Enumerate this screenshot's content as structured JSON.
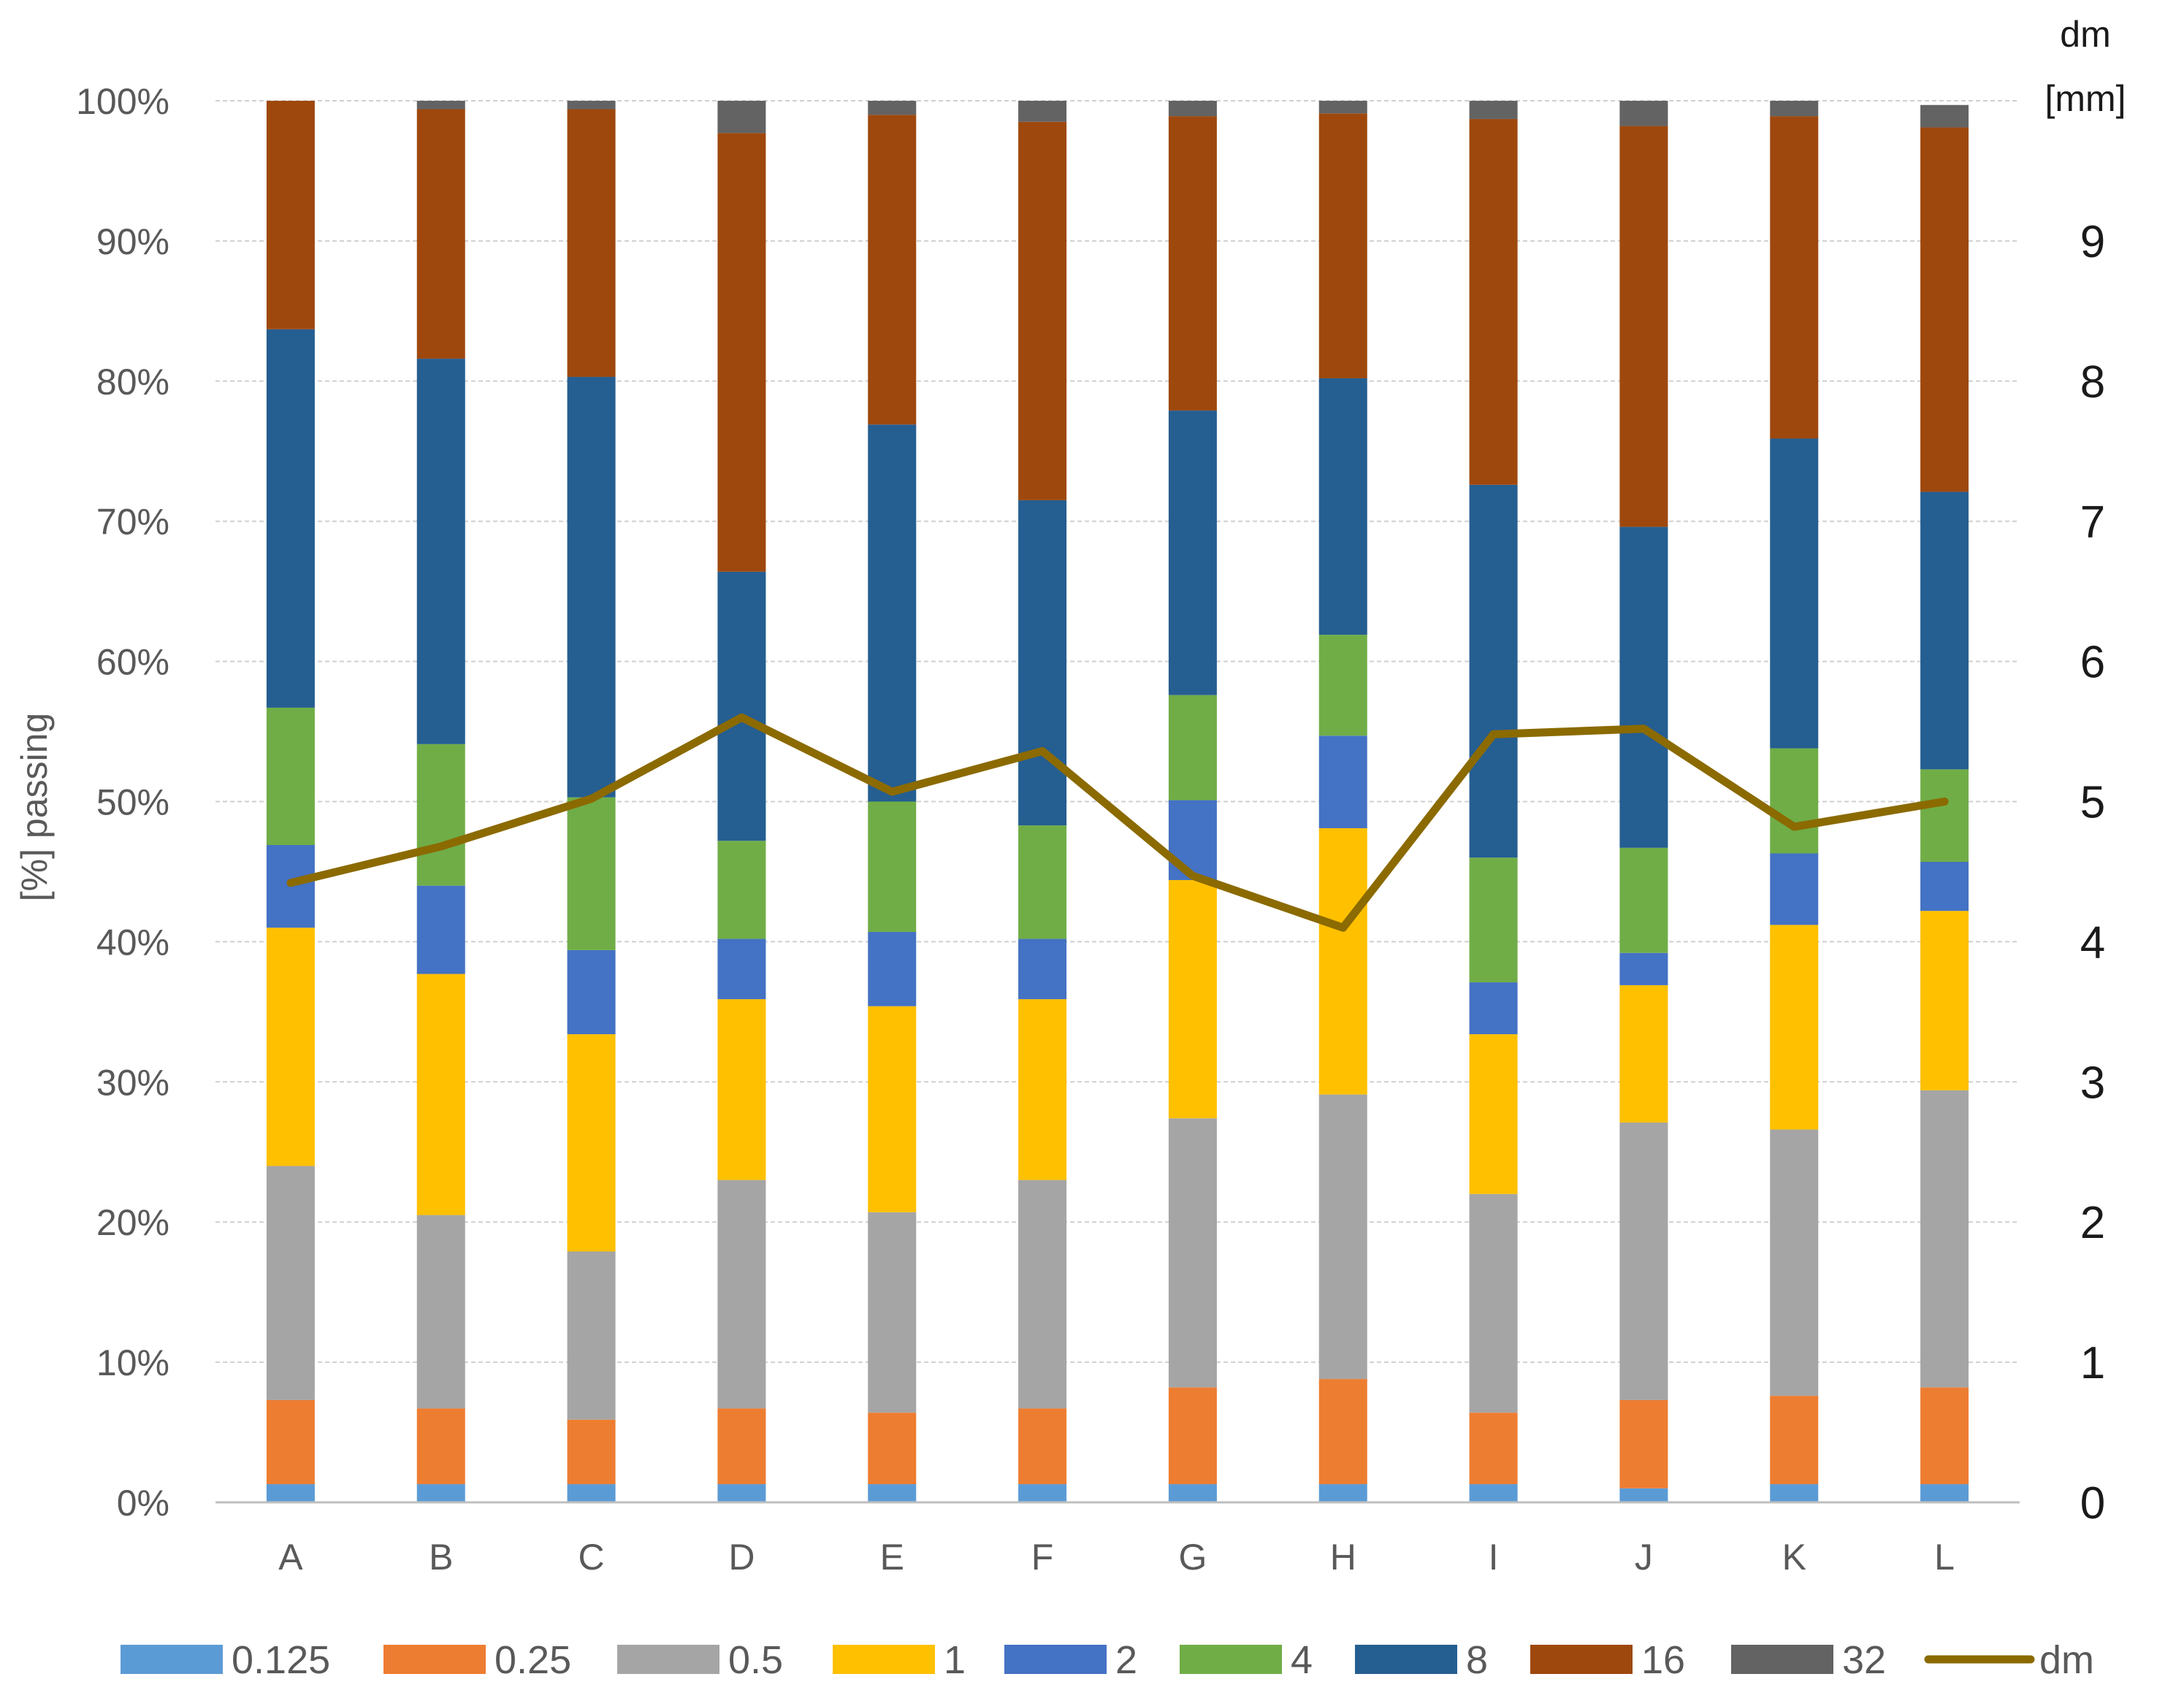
{
  "chart_data": {
    "type": "bar",
    "stacked": true,
    "title": "",
    "categories": [
      "A",
      "B",
      "C",
      "D",
      "E",
      "F",
      "G",
      "H",
      "I",
      "J",
      "K",
      "L"
    ],
    "xlabel": "",
    "ylabel": "[%] passing",
    "y2label_line1": "dm",
    "y2label_line2": "[mm]",
    "ylim": [
      0,
      100
    ],
    "y2lim": [
      0,
      10
    ],
    "yticks": [
      "0%",
      "10%",
      "20%",
      "30%",
      "40%",
      "50%",
      "60%",
      "70%",
      "80%",
      "90%",
      "100%"
    ],
    "y2ticks": [
      "0",
      "1",
      "2",
      "3",
      "4",
      "5",
      "6",
      "7",
      "8",
      "9"
    ],
    "grid": true,
    "legend_position": "bottom",
    "series": [
      {
        "name": "0.125",
        "color": "#5B9BD5",
        "values": [
          1.3,
          1.3,
          1.3,
          1.3,
          1.3,
          1.3,
          1.3,
          1.3,
          1.3,
          1.0,
          1.3,
          1.3
        ]
      },
      {
        "name": "0.25",
        "color": "#ED7D31",
        "values": [
          6.0,
          5.4,
          4.6,
          5.4,
          5.1,
          5.4,
          6.9,
          7.5,
          5.1,
          6.3,
          6.3,
          6.9
        ]
      },
      {
        "name": "0.5",
        "color": "#A5A5A5",
        "values": [
          16.7,
          13.8,
          12.0,
          16.3,
          14.3,
          16.3,
          19.2,
          20.3,
          15.6,
          19.8,
          19.0,
          21.2
        ]
      },
      {
        "name": "1",
        "color": "#FFC000",
        "values": [
          17.0,
          17.2,
          15.5,
          12.9,
          14.7,
          12.9,
          17.0,
          19.0,
          11.4,
          9.8,
          14.6,
          12.8
        ]
      },
      {
        "name": "2",
        "color": "#4472C4",
        "values": [
          5.9,
          6.3,
          6.0,
          4.3,
          5.3,
          4.3,
          5.7,
          6.6,
          3.7,
          2.3,
          5.1,
          3.5
        ]
      },
      {
        "name": "4",
        "color": "#70AD47",
        "values": [
          9.8,
          10.1,
          10.9,
          7.0,
          9.3,
          8.1,
          7.5,
          7.2,
          8.9,
          7.5,
          7.5,
          6.6
        ]
      },
      {
        "name": "8",
        "color": "#255E91",
        "values": [
          27.0,
          27.5,
          30.0,
          19.2,
          26.9,
          23.2,
          20.3,
          18.3,
          26.6,
          22.9,
          22.1,
          19.8
        ]
      },
      {
        "name": "16",
        "color": "#9E480E",
        "values": [
          16.3,
          17.8,
          19.1,
          31.3,
          22.1,
          27.0,
          21.0,
          18.9,
          26.1,
          28.6,
          23.0,
          26.0
        ]
      },
      {
        "name": "32",
        "color": "#636363",
        "values": [
          0.0,
          0.6,
          0.6,
          2.3,
          1.0,
          1.5,
          1.1,
          0.9,
          1.3,
          1.8,
          1.1,
          1.6
        ]
      }
    ],
    "line_series": {
      "name": "dm",
      "color": "#8B6A00",
      "axis": "right",
      "values": [
        4.42,
        4.68,
        5.02,
        5.6,
        5.07,
        5.36,
        4.47,
        4.1,
        5.48,
        5.52,
        4.82,
        5.0
      ]
    }
  }
}
